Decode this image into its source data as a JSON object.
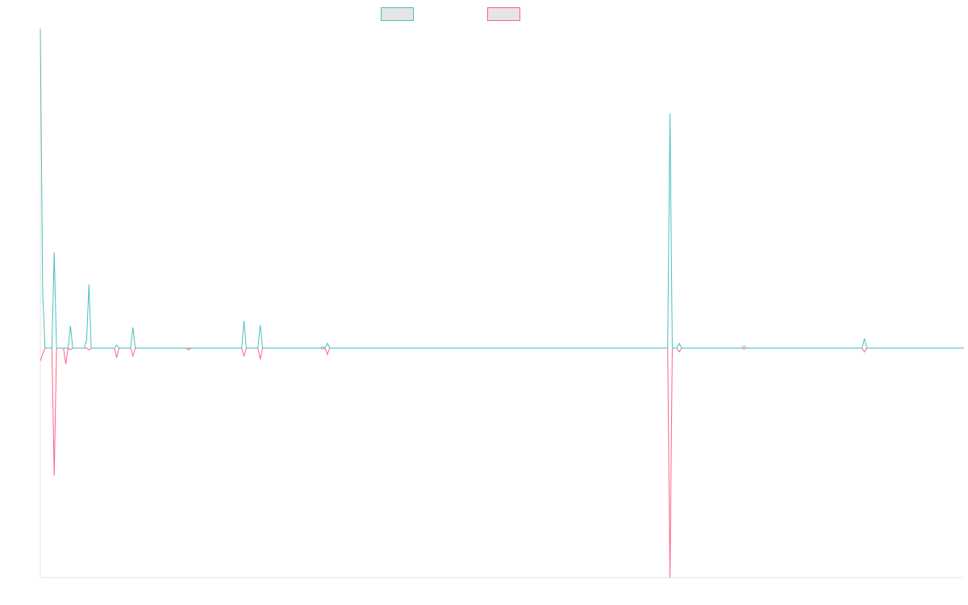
{
  "chart_data": {
    "type": "line",
    "title": "",
    "xlabel": "",
    "ylabel": "",
    "grid": false,
    "legend_position": "top-center",
    "x_count": 400,
    "ylim": [
      -0.72,
      1.0
    ],
    "colors": {
      "series_1": "#4bc0c0",
      "series_2": "#ff6384",
      "legend_fill": "#e5e5e5",
      "axis": "#e6e6e6"
    },
    "series": [
      {
        "name": "",
        "points": [
          [
            0,
            1.0
          ],
          [
            1,
            0.18
          ],
          [
            2,
            0.0
          ],
          [
            5,
            0.0
          ],
          [
            6,
            0.3
          ],
          [
            7,
            0.0
          ],
          [
            12,
            0.0
          ],
          [
            13,
            0.07
          ],
          [
            14,
            0.0
          ],
          [
            19,
            0.0
          ],
          [
            20,
            0.025
          ],
          [
            21,
            0.2
          ],
          [
            22,
            0.0
          ],
          [
            32,
            0.0
          ],
          [
            33,
            0.01
          ],
          [
            34,
            0.0
          ],
          [
            39,
            0.0
          ],
          [
            40,
            0.065
          ],
          [
            41,
            0.0
          ],
          [
            87,
            0.0
          ],
          [
            88,
            0.085
          ],
          [
            89,
            0.0
          ],
          [
            94,
            0.0
          ],
          [
            95,
            0.072
          ],
          [
            96,
            0.0
          ],
          [
            121,
            0.0
          ],
          [
            122,
            0.004
          ],
          [
            123,
            0.0
          ],
          [
            124,
            0.015
          ],
          [
            125,
            0.0
          ],
          [
            271,
            0.0
          ],
          [
            272,
            0.735
          ],
          [
            273,
            0.0
          ],
          [
            275,
            0.0
          ],
          [
            276,
            0.015
          ],
          [
            277,
            0.0
          ],
          [
            303,
            0.0
          ],
          [
            304,
            0.006
          ],
          [
            305,
            0.0
          ],
          [
            355,
            0.0
          ],
          [
            356,
            0.03
          ],
          [
            357,
            0.0
          ],
          [
            399,
            0.0
          ]
        ]
      },
      {
        "name": "",
        "points": [
          [
            0,
            -0.04
          ],
          [
            1,
            -0.02
          ],
          [
            2,
            0.0
          ],
          [
            5,
            0.0
          ],
          [
            6,
            -0.4
          ],
          [
            7,
            0.0
          ],
          [
            10,
            0.0
          ],
          [
            11,
            -0.05
          ],
          [
            12,
            0.0
          ],
          [
            13,
            -0.005
          ],
          [
            14,
            0.0
          ],
          [
            20,
            0.0
          ],
          [
            21,
            -0.006
          ],
          [
            22,
            0.0
          ],
          [
            32,
            0.0
          ],
          [
            33,
            -0.03
          ],
          [
            34,
            0.0
          ],
          [
            39,
            0.0
          ],
          [
            40,
            -0.025
          ],
          [
            41,
            0.0
          ],
          [
            63,
            0.0
          ],
          [
            64,
            -0.006
          ],
          [
            65,
            0.0
          ],
          [
            87,
            0.0
          ],
          [
            88,
            -0.025
          ],
          [
            89,
            0.0
          ],
          [
            94,
            0.0
          ],
          [
            95,
            -0.035
          ],
          [
            96,
            0.0
          ],
          [
            121,
            0.0
          ],
          [
            122,
            -0.003
          ],
          [
            123,
            0.0
          ],
          [
            124,
            -0.02
          ],
          [
            125,
            0.0
          ],
          [
            271,
            0.0
          ],
          [
            272,
            -0.72
          ],
          [
            273,
            0.0
          ],
          [
            275,
            0.0
          ],
          [
            276,
            -0.012
          ],
          [
            277,
            0.0
          ],
          [
            303,
            0.0
          ],
          [
            304,
            -0.003
          ],
          [
            305,
            0.0
          ],
          [
            355,
            0.0
          ],
          [
            356,
            -0.012
          ],
          [
            357,
            0.0
          ],
          [
            399,
            0.0
          ]
        ]
      }
    ]
  }
}
